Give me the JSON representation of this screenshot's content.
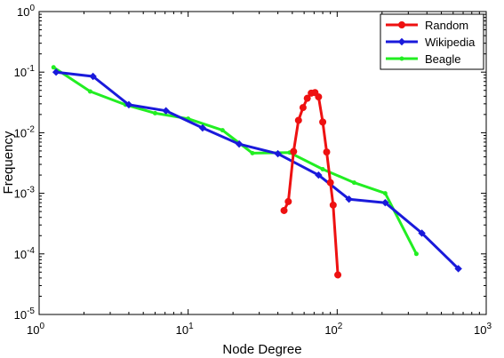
{
  "chart_data": {
    "type": "line",
    "xscale": "log",
    "yscale": "log",
    "xlim": [
      1,
      1000
    ],
    "ylim": [
      1e-05,
      1
    ],
    "xlabel": "Node Degree",
    "ylabel": "Frequency",
    "x_ticks": [
      {
        "value": 1,
        "base": "10",
        "exp": "0"
      },
      {
        "value": 10,
        "base": "10",
        "exp": "1"
      },
      {
        "value": 100,
        "base": "10",
        "exp": "2"
      },
      {
        "value": 1000,
        "base": "10",
        "exp": "3"
      }
    ],
    "y_ticks": [
      {
        "value": 1,
        "base": "10",
        "exp": "0"
      },
      {
        "value": 0.1,
        "base": "10",
        "exp": "-1"
      },
      {
        "value": 0.01,
        "base": "10",
        "exp": "-2"
      },
      {
        "value": 0.001,
        "base": "10",
        "exp": "-3"
      },
      {
        "value": 0.0001,
        "base": "10",
        "exp": "-4"
      },
      {
        "value": 1e-05,
        "base": "10",
        "exp": "-5"
      }
    ],
    "legend_position": "top-right",
    "grid": false,
    "series": [
      {
        "name": "Random",
        "color": "#ee1111",
        "marker": "circle",
        "x": [
          44,
          47,
          51,
          55,
          59,
          63,
          67,
          71,
          75,
          80,
          85,
          90,
          94,
          101
        ],
        "y": [
          0.00052,
          0.00073,
          0.0049,
          0.016,
          0.026,
          0.037,
          0.045,
          0.046,
          0.039,
          0.015,
          0.0048,
          0.0015,
          0.00064,
          4.5e-05
        ]
      },
      {
        "name": "Wikipedia",
        "color": "#1a1adb",
        "marker": "diamond",
        "x": [
          1.3,
          2.3,
          4.0,
          7.1,
          12.5,
          22,
          40,
          75,
          120,
          210,
          370,
          650
        ],
        "y": [
          0.1,
          0.085,
          0.029,
          0.023,
          0.012,
          0.0065,
          0.0045,
          0.002,
          0.0008,
          0.0007,
          0.00022,
          5.7e-05
        ]
      },
      {
        "name": "Beagle",
        "color": "#22ee22",
        "marker": "dot",
        "x": [
          1.25,
          2.2,
          3.8,
          6.0,
          10,
          17,
          27,
          48,
          80,
          130,
          210,
          340
        ],
        "y": [
          0.12,
          0.048,
          0.029,
          0.021,
          0.017,
          0.011,
          0.0046,
          0.0047,
          0.0025,
          0.0015,
          0.001,
          0.0001
        ]
      }
    ]
  }
}
